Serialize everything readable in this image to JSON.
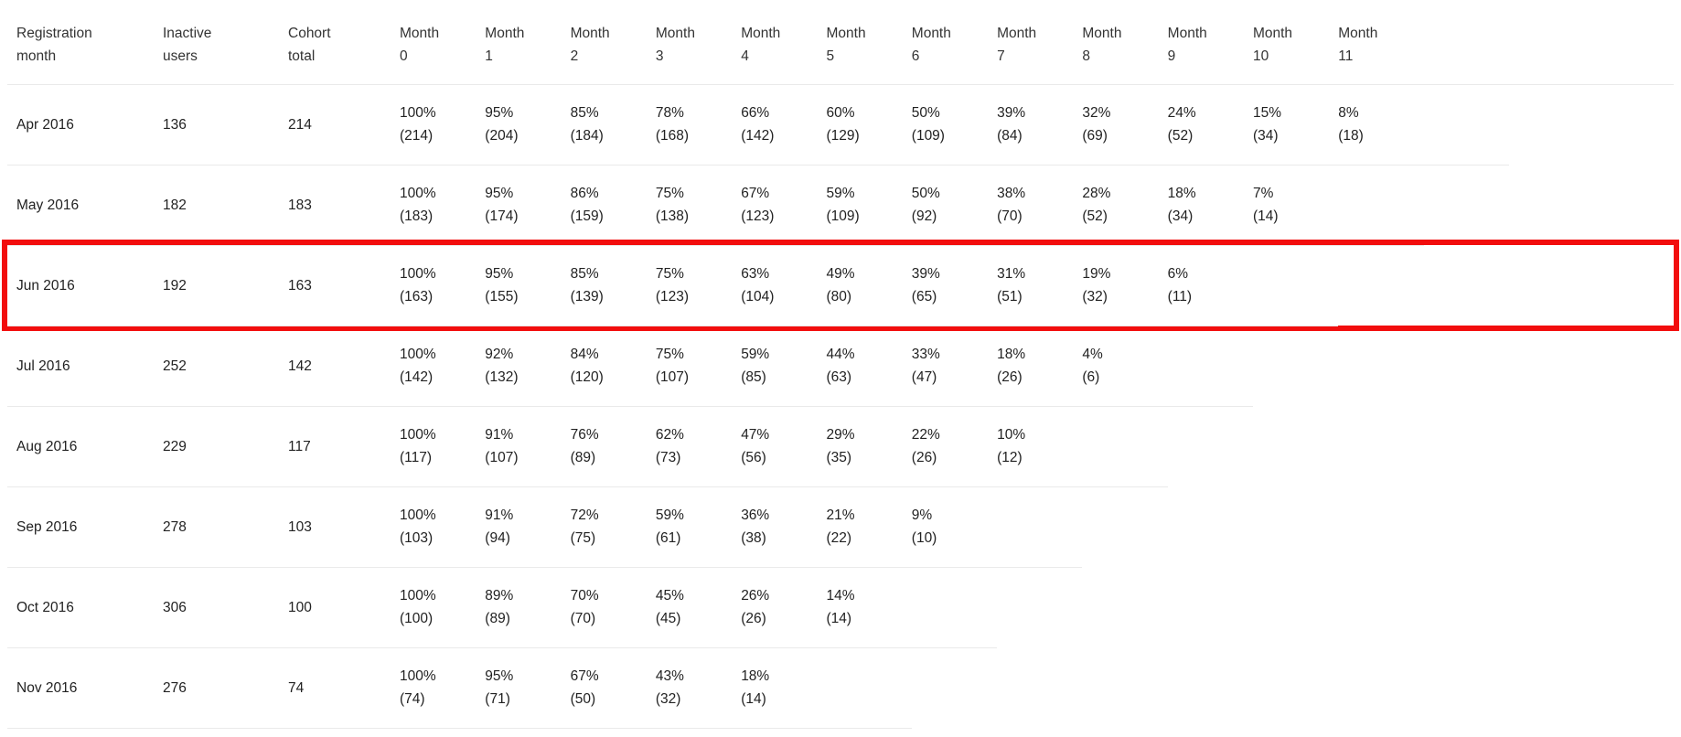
{
  "table": {
    "columns": [
      "Registration month",
      "Inactive users",
      "Cohort total",
      "Month 0",
      "Month 1",
      "Month 2",
      "Month 3",
      "Month 4",
      "Month 5",
      "Month 6",
      "Month 7",
      "Month 8",
      "Month 9",
      "Month 10",
      "Month 11"
    ],
    "rows": [
      {
        "month": "Apr 2016",
        "inactive": "136",
        "total": "214",
        "highlighted": false,
        "cells": [
          [
            "100%",
            "(214)"
          ],
          [
            "95%",
            "(204)"
          ],
          [
            "85%",
            "(184)"
          ],
          [
            "78%",
            "(168)"
          ],
          [
            "66%",
            "(142)"
          ],
          [
            "60%",
            "(129)"
          ],
          [
            "50%",
            "(109)"
          ],
          [
            "39%",
            "(84)"
          ],
          [
            "32%",
            "(69)"
          ],
          [
            "24%",
            "(52)"
          ],
          [
            "15%",
            "(34)"
          ],
          [
            "8%",
            "(18)"
          ]
        ]
      },
      {
        "month": "May 2016",
        "inactive": "182",
        "total": "183",
        "highlighted": false,
        "cells": [
          [
            "100%",
            "(183)"
          ],
          [
            "95%",
            "(174)"
          ],
          [
            "86%",
            "(159)"
          ],
          [
            "75%",
            "(138)"
          ],
          [
            "67%",
            "(123)"
          ],
          [
            "59%",
            "(109)"
          ],
          [
            "50%",
            "(92)"
          ],
          [
            "38%",
            "(70)"
          ],
          [
            "28%",
            "(52)"
          ],
          [
            "18%",
            "(34)"
          ],
          [
            "7%",
            "(14)"
          ]
        ]
      },
      {
        "month": "Jun 2016",
        "inactive": "192",
        "total": "163",
        "highlighted": true,
        "cells": [
          [
            "100%",
            "(163)"
          ],
          [
            "95%",
            "(155)"
          ],
          [
            "85%",
            "(139)"
          ],
          [
            "75%",
            "(123)"
          ],
          [
            "63%",
            "(104)"
          ],
          [
            "49%",
            "(80)"
          ],
          [
            "39%",
            "(65)"
          ],
          [
            "31%",
            "(51)"
          ],
          [
            "19%",
            "(32)"
          ],
          [
            "6%",
            "(11)"
          ]
        ]
      },
      {
        "month": "Jul 2016",
        "inactive": "252",
        "total": "142",
        "highlighted": false,
        "cells": [
          [
            "100%",
            "(142)"
          ],
          [
            "92%",
            "(132)"
          ],
          [
            "84%",
            "(120)"
          ],
          [
            "75%",
            "(107)"
          ],
          [
            "59%",
            "(85)"
          ],
          [
            "44%",
            "(63)"
          ],
          [
            "33%",
            "(47)"
          ],
          [
            "18%",
            "(26)"
          ],
          [
            "4%",
            "(6)"
          ]
        ]
      },
      {
        "month": "Aug 2016",
        "inactive": "229",
        "total": "117",
        "highlighted": false,
        "cells": [
          [
            "100%",
            "(117)"
          ],
          [
            "91%",
            "(107)"
          ],
          [
            "76%",
            "(89)"
          ],
          [
            "62%",
            "(73)"
          ],
          [
            "47%",
            "(56)"
          ],
          [
            "29%",
            "(35)"
          ],
          [
            "22%",
            "(26)"
          ],
          [
            "10%",
            "(12)"
          ]
        ]
      },
      {
        "month": "Sep 2016",
        "inactive": "278",
        "total": "103",
        "highlighted": false,
        "cells": [
          [
            "100%",
            "(103)"
          ],
          [
            "91%",
            "(94)"
          ],
          [
            "72%",
            "(75)"
          ],
          [
            "59%",
            "(61)"
          ],
          [
            "36%",
            "(38)"
          ],
          [
            "21%",
            "(22)"
          ],
          [
            "9%",
            "(10)"
          ]
        ]
      },
      {
        "month": "Oct 2016",
        "inactive": "306",
        "total": "100",
        "highlighted": false,
        "cells": [
          [
            "100%",
            "(100)"
          ],
          [
            "89%",
            "(89)"
          ],
          [
            "70%",
            "(70)"
          ],
          [
            "45%",
            "(45)"
          ],
          [
            "26%",
            "(26)"
          ],
          [
            "14%",
            "(14)"
          ]
        ]
      },
      {
        "month": "Nov 2016",
        "inactive": "276",
        "total": "74",
        "highlighted": false,
        "cells": [
          [
            "100%",
            "(74)"
          ],
          [
            "95%",
            "(71)"
          ],
          [
            "67%",
            "(50)"
          ],
          [
            "43%",
            "(32)"
          ],
          [
            "18%",
            "(14)"
          ]
        ]
      }
    ]
  },
  "colors": {
    "highlight_border": "#f20d0d",
    "row_separator": "#eaeaea",
    "text": "#222222",
    "header_text": "#333333",
    "background": "#ffffff"
  }
}
